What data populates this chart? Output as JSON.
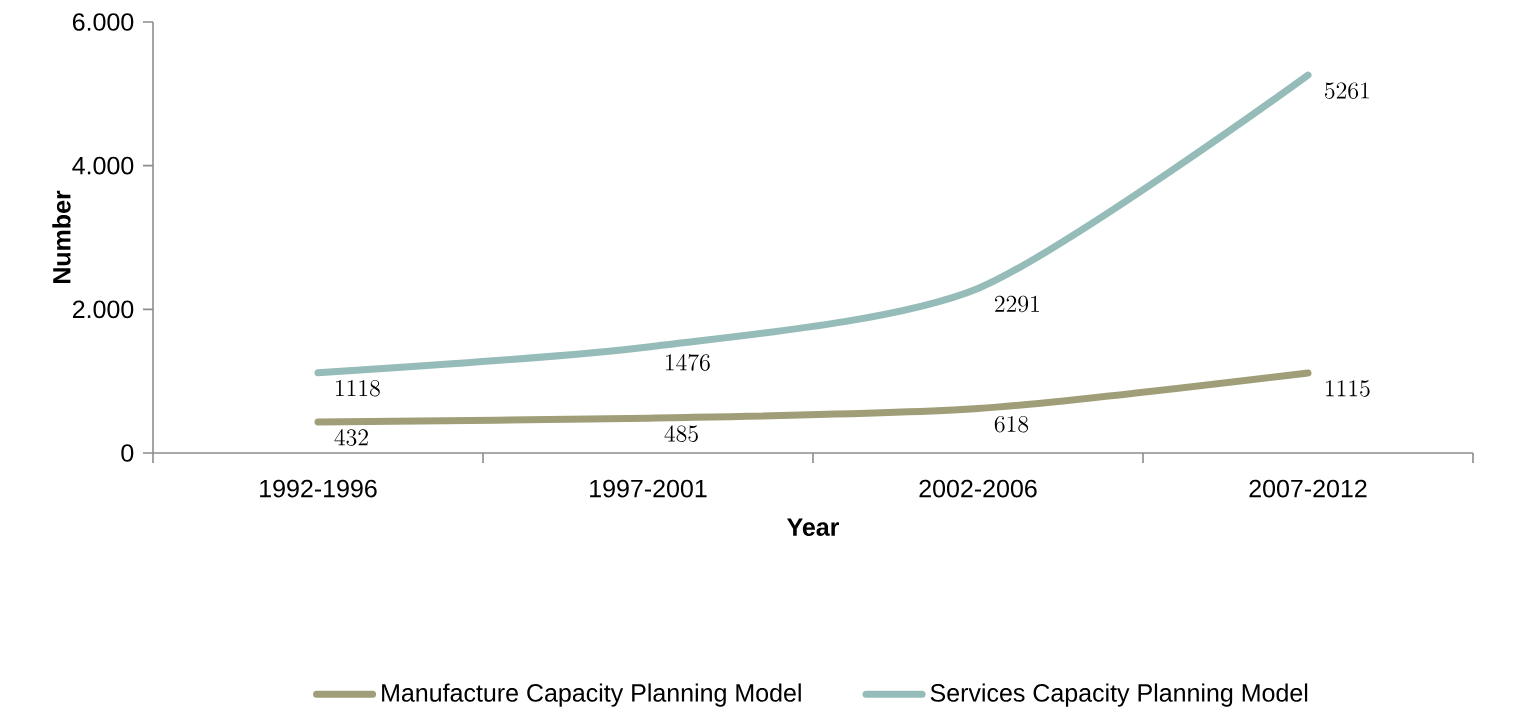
{
  "chart_data": {
    "type": "line",
    "xlabel": "Year",
    "ylabel": "Number",
    "categories": [
      "1992-1996",
      "1997-2001",
      "2002-2006",
      "2007-2012"
    ],
    "series": [
      {
        "name": "Manufacture Capacity Planning Model",
        "color": "#a09e78",
        "values": [
          432,
          485,
          618,
          1115
        ]
      },
      {
        "name": "Services Capacity Planning Model",
        "color": "#95bcb9",
        "values": [
          1118,
          1476,
          2291,
          5261
        ]
      }
    ],
    "ylim": [
      0,
      6000
    ],
    "yticks": [
      {
        "value": 0,
        "label": "0"
      },
      {
        "value": 2000,
        "label": "2.000"
      },
      {
        "value": 4000,
        "label": "4.000"
      },
      {
        "value": 6000,
        "label": "6.000"
      }
    ],
    "data_labels": true,
    "legend": "bottom",
    "grid": false,
    "marker": "none",
    "line_style": "solid"
  }
}
